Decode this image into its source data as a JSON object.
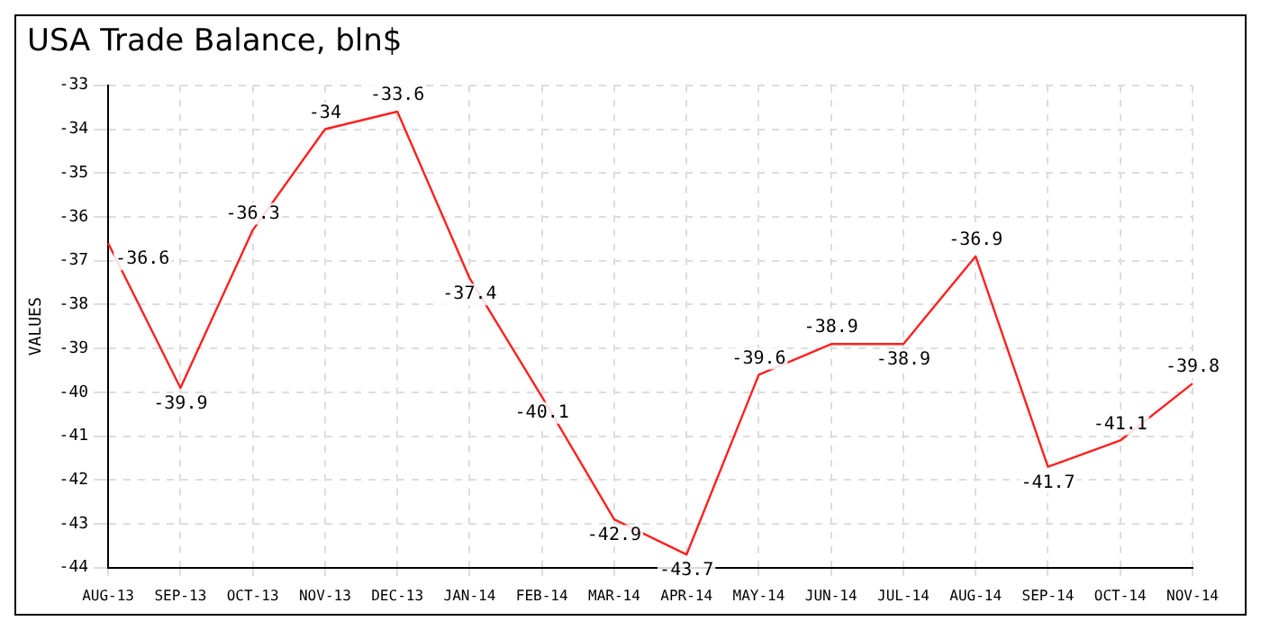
{
  "chart_data": {
    "type": "line",
    "title": "USA Trade Balance, bln$",
    "ylabel": "VALUES",
    "categories": [
      "AUG-13",
      "SEP-13",
      "OCT-13",
      "NOV-13",
      "DEC-13",
      "JAN-14",
      "FEB-14",
      "MAR-14",
      "APR-14",
      "MAY-14",
      "JUN-14",
      "JUL-14",
      "AUG-14",
      "SEP-14",
      "OCT-14",
      "NOV-14"
    ],
    "series": [
      {
        "color": "#ff2020",
        "values": [
          -36.6,
          -39.9,
          -36.3,
          -34,
          -33.6,
          -37.4,
          -40.1,
          -42.9,
          -43.7,
          -39.6,
          -38.9,
          -38.9,
          -36.9,
          -41.7,
          -41.1,
          -39.8
        ]
      }
    ],
    "ylim": [
      -44,
      -33
    ],
    "yticks": [
      -44,
      -43,
      -42,
      -41,
      -40,
      -39,
      -38,
      -37,
      -36,
      -35,
      -34,
      -33
    ],
    "grid": true,
    "data_labels": true,
    "marker": "none",
    "line_style": "solid",
    "legend": false
  }
}
